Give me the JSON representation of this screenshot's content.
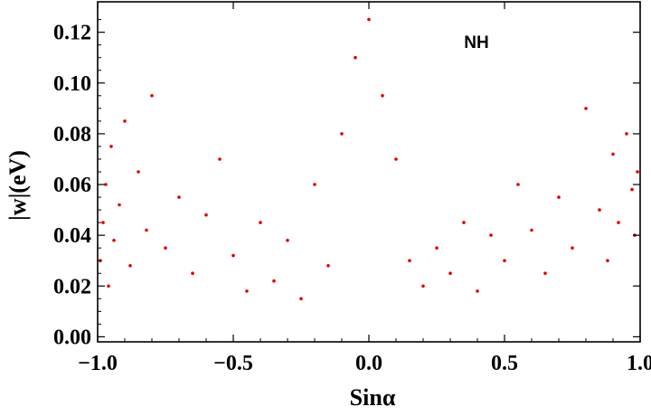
{
  "chart_data": {
    "type": "scatter",
    "title": "",
    "xlabel": "Sinα",
    "ylabel": "|w|(eV)",
    "xlim": [
      -1.0,
      1.0
    ],
    "ylim": [
      -0.002,
      0.132
    ],
    "xticks": [
      -1.0,
      -0.5,
      0.0,
      0.5,
      1.0
    ],
    "xtick_labels": [
      "−1.0",
      "−0.5",
      "0.0",
      "0.5",
      "1.0"
    ],
    "yticks": [
      0.0,
      0.02,
      0.04,
      0.06,
      0.08,
      0.1,
      0.12
    ],
    "ytick_labels": [
      "0.00",
      "0.02",
      "0.04",
      "0.06",
      "0.08",
      "0.10",
      "0.12"
    ],
    "annotation": "NH",
    "grid": false,
    "marker_color": "#e00000",
    "series": [
      {
        "points": [
          [
            -0.99,
            0.03
          ],
          [
            -0.98,
            0.045
          ],
          [
            -0.97,
            0.06
          ],
          [
            -0.96,
            0.02
          ],
          [
            -0.95,
            0.075
          ],
          [
            -0.94,
            0.038
          ],
          [
            -0.92,
            0.052
          ],
          [
            -0.9,
            0.085
          ],
          [
            -0.88,
            0.028
          ],
          [
            -0.85,
            0.065
          ],
          [
            -0.82,
            0.042
          ],
          [
            -0.8,
            0.095
          ],
          [
            -0.75,
            0.035
          ],
          [
            -0.7,
            0.055
          ],
          [
            -0.65,
            0.025
          ],
          [
            -0.6,
            0.048
          ],
          [
            -0.55,
            0.07
          ],
          [
            -0.5,
            0.032
          ],
          [
            -0.45,
            0.018
          ],
          [
            -0.4,
            0.045
          ],
          [
            -0.35,
            0.022
          ],
          [
            -0.3,
            0.038
          ],
          [
            -0.25,
            0.015
          ],
          [
            -0.2,
            0.06
          ],
          [
            -0.15,
            0.028
          ],
          [
            -0.1,
            0.08
          ],
          [
            -0.05,
            0.11
          ],
          [
            0.0,
            0.125
          ],
          [
            0.05,
            0.095
          ],
          [
            0.1,
            0.07
          ],
          [
            0.15,
            0.03
          ],
          [
            0.2,
            0.02
          ],
          [
            0.25,
            0.035
          ],
          [
            0.3,
            0.025
          ],
          [
            0.35,
            0.045
          ],
          [
            0.4,
            0.018
          ],
          [
            0.45,
            0.04
          ],
          [
            0.5,
            0.03
          ],
          [
            0.55,
            0.06
          ],
          [
            0.6,
            0.042
          ],
          [
            0.65,
            0.025
          ],
          [
            0.7,
            0.055
          ],
          [
            0.75,
            0.035
          ],
          [
            0.8,
            0.09
          ],
          [
            0.85,
            0.05
          ],
          [
            0.88,
            0.03
          ],
          [
            0.9,
            0.072
          ],
          [
            0.92,
            0.045
          ],
          [
            0.95,
            0.08
          ],
          [
            0.97,
            0.058
          ],
          [
            0.98,
            0.04
          ],
          [
            0.99,
            0.065
          ]
        ]
      }
    ]
  }
}
